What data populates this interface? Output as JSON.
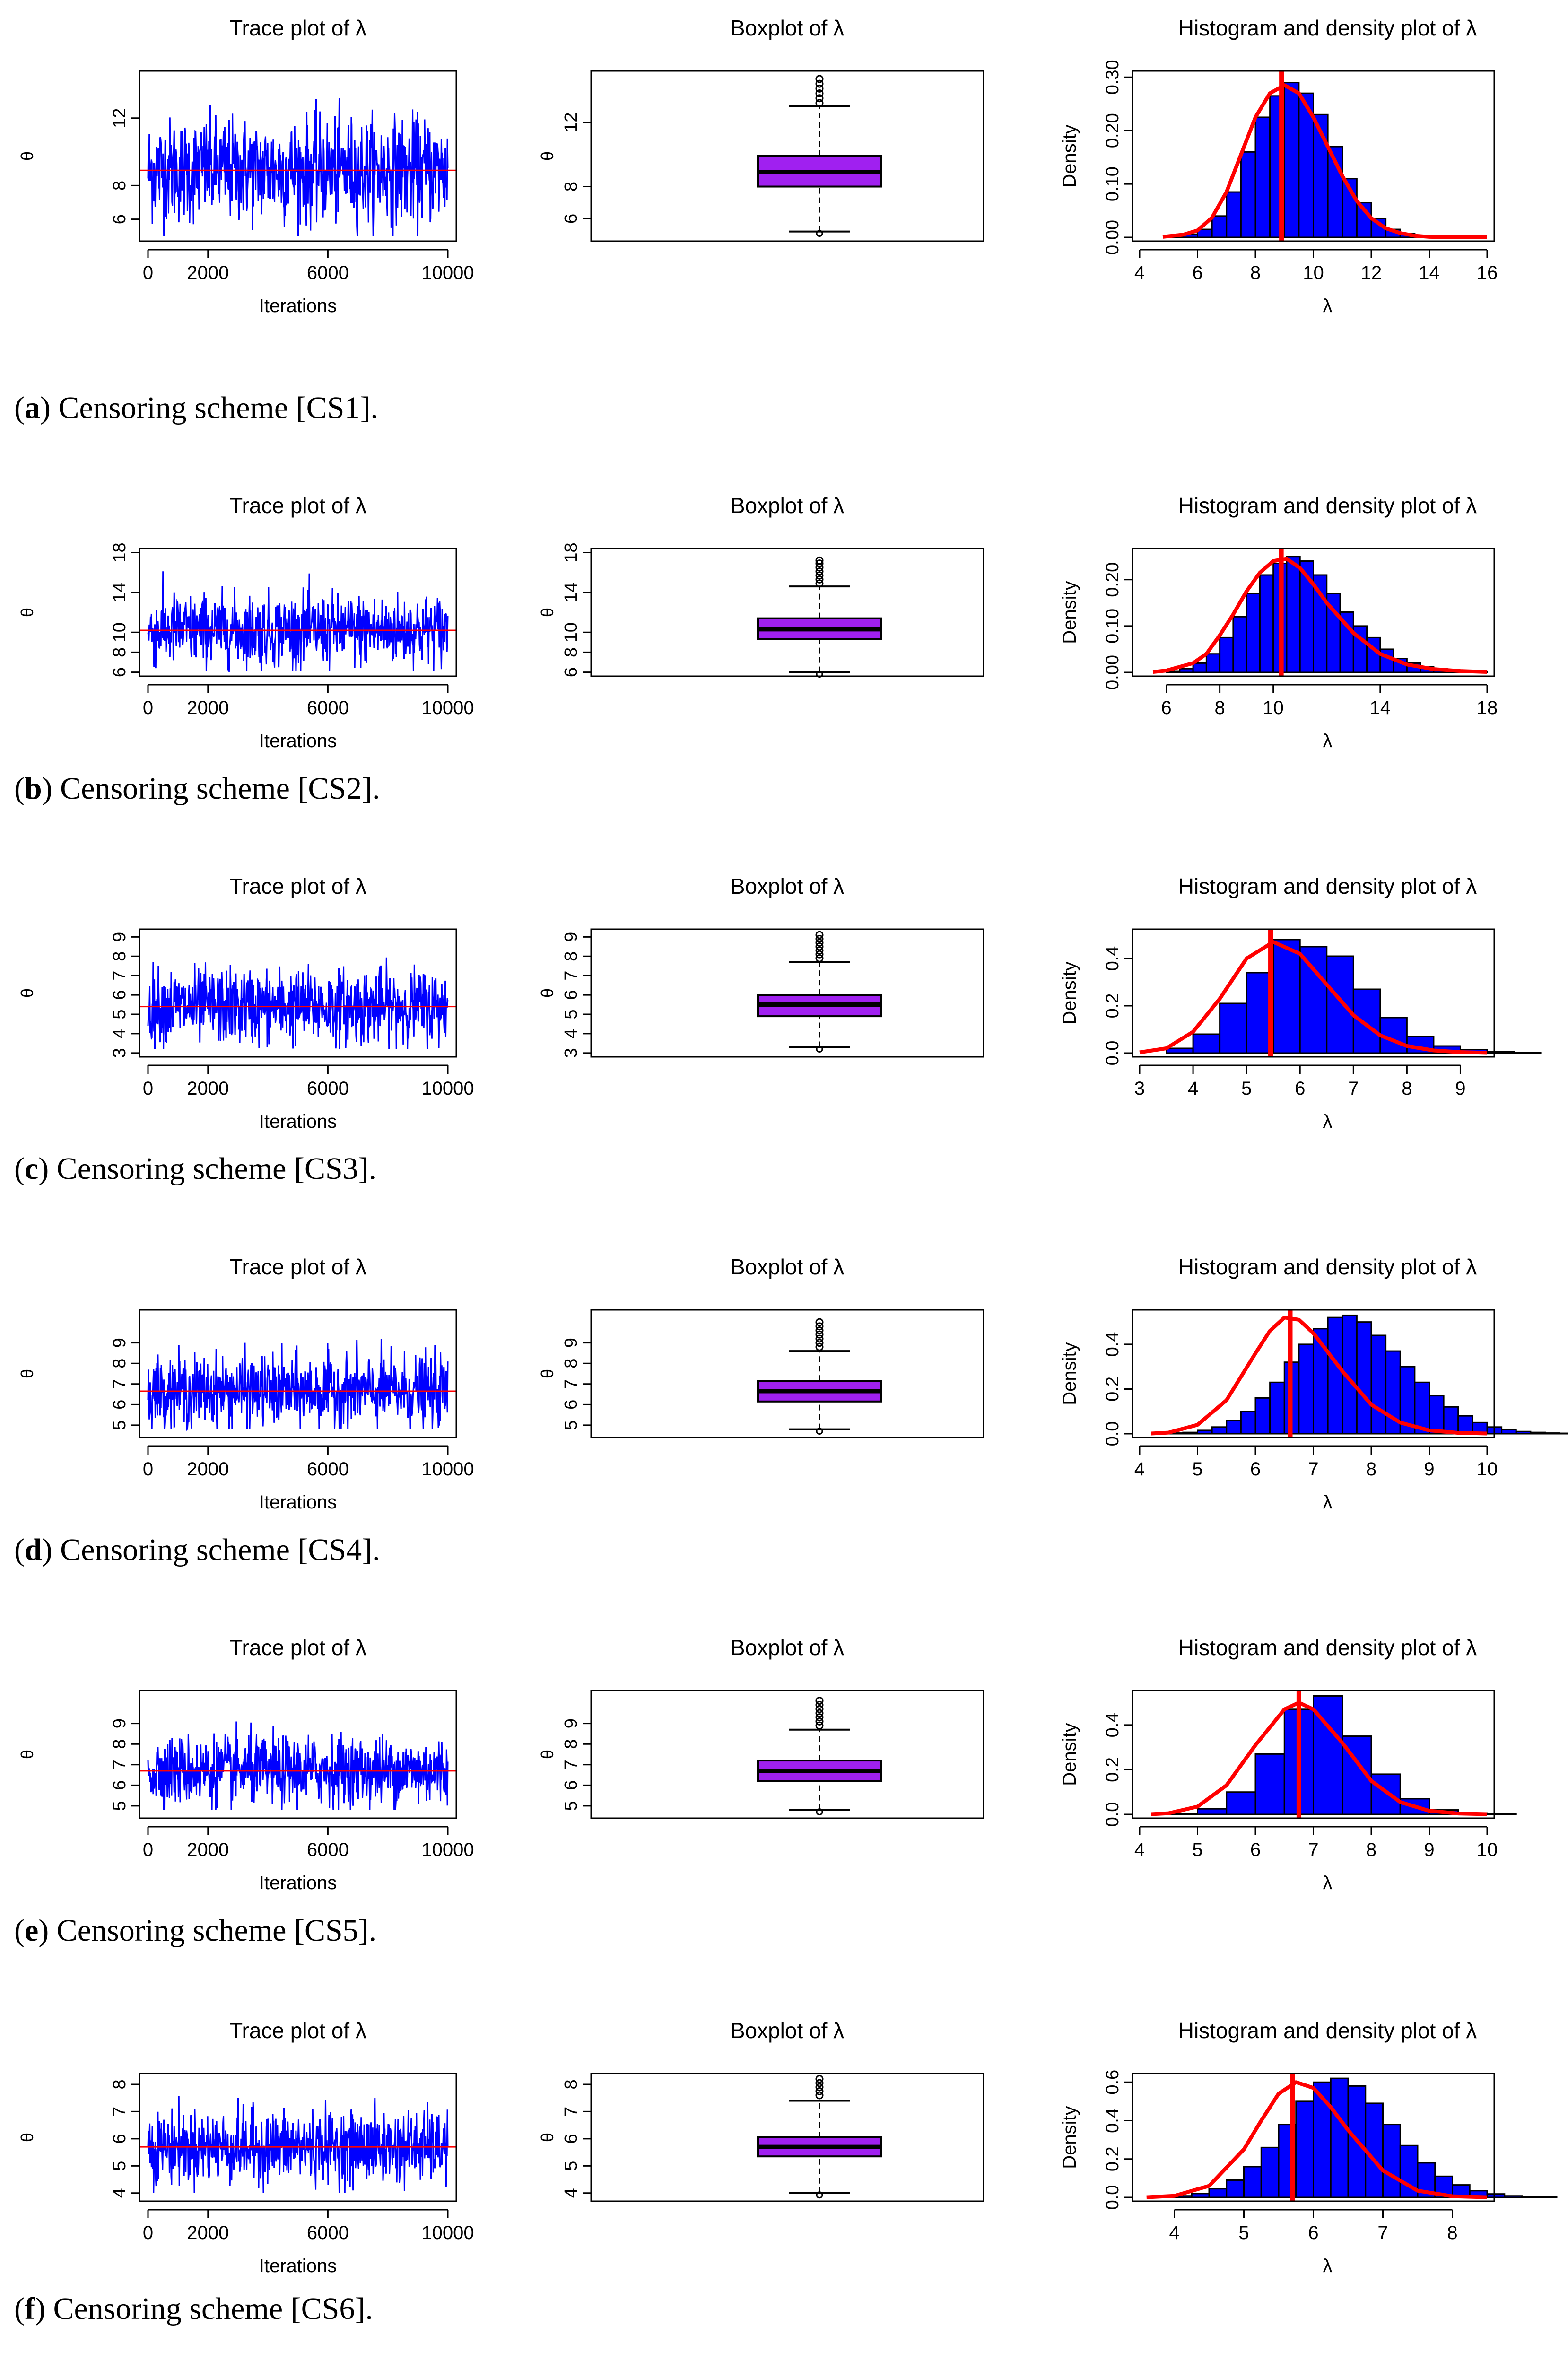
{
  "figure": {
    "panel_titles": {
      "trace": "Trace plot of λ",
      "box": "Boxplot of λ",
      "hist": "Histogram and density plot of λ"
    },
    "trace_xlabel": "Iterations",
    "trace_ylabel": "θ",
    "box_ylabel": "θ",
    "hist_ylabel": "Density",
    "hist_xlabel": "λ",
    "colors": {
      "trace": "#0000ff",
      "mean_line": "#ff0000",
      "box_fill": "#a020f0",
      "hist_fill": "#0000ff",
      "density": "#ff0000"
    }
  },
  "rows": [
    {
      "caption_letter": "a",
      "caption_text": ") Censoring scheme [CS1].",
      "caption_open": "("
    },
    {
      "caption_letter": "b",
      "caption_text": ") Censoring scheme [CS2].",
      "caption_open": "("
    },
    {
      "caption_letter": "c",
      "caption_text": ") Censoring scheme [CS3].",
      "caption_open": "("
    },
    {
      "caption_letter": "d",
      "caption_text": ") Censoring scheme [CS4].",
      "caption_open": "("
    },
    {
      "caption_letter": "e",
      "caption_text": ") Censoring scheme [CS5].",
      "caption_open": "("
    },
    {
      "caption_letter": "f",
      "caption_text": ") Censoring scheme [CS6].",
      "caption_open": "("
    }
  ],
  "chart_data": [
    {
      "scheme": "CS1",
      "trace": {
        "type": "line",
        "title": "Trace plot of λ",
        "xlabel": "Iterations",
        "ylabel": "θ",
        "xlim": [
          0,
          10000
        ],
        "xticks": [
          0,
          2000,
          6000,
          10000
        ],
        "ylim": [
          4.7,
          14.8
        ],
        "yticks": [
          6,
          8,
          12
        ],
        "mean": 8.9,
        "range_observed": [
          5.0,
          14.6
        ]
      },
      "boxplot": {
        "type": "box",
        "title": "Boxplot of λ",
        "ylabel": "θ",
        "ylim": [
          4.6,
          15.2
        ],
        "yticks": [
          6,
          8,
          12
        ],
        "whisker_low": 5.2,
        "q1": 8.0,
        "median": 8.9,
        "q3": 9.9,
        "whisker_high": 13.0,
        "outliers_high": [
          13.2,
          13.5,
          13.8,
          14.1,
          14.4,
          14.7
        ]
      },
      "histogram": {
        "type": "histogram",
        "title": "Histogram and density plot of λ",
        "xlabel": "λ",
        "ylabel": "Density",
        "xlim": [
          4,
          16
        ],
        "xticks": [
          4,
          6,
          8,
          10,
          12,
          14,
          16
        ],
        "ylim": [
          0,
          0.31
        ],
        "yticks": [
          "0.00",
          "0.10",
          "0.20",
          "0.30"
        ],
        "bin_start": 5,
        "bin_width": 0.5,
        "densities": [
          0.002,
          0.006,
          0.015,
          0.04,
          0.085,
          0.16,
          0.225,
          0.265,
          0.29,
          0.27,
          0.23,
          0.17,
          0.11,
          0.065,
          0.035,
          0.015,
          0.007,
          0.003
        ],
        "density_curve_x": [
          4.8,
          5.5,
          6,
          6.5,
          7,
          7.5,
          8,
          8.5,
          9,
          9.5,
          10,
          10.5,
          11,
          11.5,
          12,
          12.5,
          13,
          13.5,
          14,
          14.5,
          15,
          16
        ],
        "density_curve_y": [
          0.001,
          0.005,
          0.013,
          0.037,
          0.085,
          0.155,
          0.225,
          0.27,
          0.285,
          0.27,
          0.225,
          0.17,
          0.115,
          0.068,
          0.036,
          0.017,
          0.008,
          0.003,
          0.001,
          0.0005,
          0.0002,
          0
        ],
        "mean": 8.9
      }
    },
    {
      "scheme": "CS2",
      "trace": {
        "type": "line",
        "title": "Trace plot of λ",
        "xlabel": "Iterations",
        "ylabel": "θ",
        "xlim": [
          0,
          10000
        ],
        "xticks": [
          0,
          2000,
          6000,
          10000
        ],
        "ylim": [
          5.6,
          18.4
        ],
        "yticks": [
          6,
          8,
          10,
          14,
          18
        ],
        "mean": 10.2,
        "range_observed": [
          6.1,
          17.3
        ]
      },
      "boxplot": {
        "type": "box",
        "title": "Boxplot of λ",
        "ylabel": "θ",
        "ylim": [
          5.6,
          18.4
        ],
        "yticks": [
          6,
          8,
          10,
          14,
          18
        ],
        "whisker_low": 6.0,
        "q1": 9.3,
        "median": 10.3,
        "q3": 11.4,
        "whisker_high": 14.6,
        "outliers_high": [
          14.9,
          15.3,
          15.7,
          16.1,
          16.5,
          16.9,
          17.2
        ]
      },
      "histogram": {
        "type": "histogram",
        "title": "Histogram and density plot of λ",
        "xlabel": "λ",
        "ylabel": "Density",
        "xlim": [
          5,
          18
        ],
        "xticks": [
          6,
          8,
          10,
          14,
          18
        ],
        "ylim": [
          0,
          0.265
        ],
        "yticks": [
          "0.00",
          "0.10",
          "0.20"
        ],
        "bin_start": 6,
        "bin_width": 0.5,
        "densities": [
          0.003,
          0.008,
          0.02,
          0.04,
          0.075,
          0.12,
          0.17,
          0.21,
          0.235,
          0.25,
          0.24,
          0.21,
          0.17,
          0.13,
          0.1,
          0.075,
          0.05,
          0.03,
          0.02,
          0.012,
          0.008,
          0.005,
          0.003,
          0.002
        ],
        "density_curve_x": [
          5.5,
          6,
          7,
          7.5,
          8,
          8.5,
          9,
          9.5,
          10,
          10.5,
          11,
          11.5,
          12,
          13,
          14,
          15,
          16,
          17,
          18
        ],
        "density_curve_y": [
          0.001,
          0.004,
          0.02,
          0.04,
          0.08,
          0.125,
          0.175,
          0.215,
          0.24,
          0.245,
          0.225,
          0.19,
          0.15,
          0.085,
          0.04,
          0.017,
          0.007,
          0.003,
          0.001
        ],
        "mean": 10.3
      }
    },
    {
      "scheme": "CS3",
      "trace": {
        "type": "line",
        "title": "Trace plot of λ",
        "xlabel": "Iterations",
        "ylabel": "θ",
        "xlim": [
          0,
          10000
        ],
        "xticks": [
          0,
          2000,
          6000,
          10000
        ],
        "ylim": [
          2.8,
          9.4
        ],
        "yticks": [
          3,
          4,
          5,
          6,
          7,
          8,
          9
        ],
        "mean": 5.4,
        "range_observed": [
          3.2,
          9.2
        ]
      },
      "boxplot": {
        "type": "box",
        "title": "Boxplot of λ",
        "ylabel": "θ",
        "ylim": [
          2.8,
          9.4
        ],
        "yticks": [
          3,
          4,
          5,
          6,
          7,
          8,
          9
        ],
        "whisker_low": 3.3,
        "q1": 4.9,
        "median": 5.5,
        "q3": 6.0,
        "whisker_high": 7.7,
        "outliers_high": [
          7.9,
          8.1,
          8.3,
          8.5,
          8.7,
          8.9,
          9.1
        ]
      },
      "histogram": {
        "type": "histogram",
        "title": "Histogram and density plot of λ",
        "xlabel": "λ",
        "ylabel": "Density",
        "xlim": [
          3,
          9.5
        ],
        "xticks": [
          3,
          4,
          5,
          6,
          7,
          8,
          9
        ],
        "ylim": [
          0,
          0.52
        ],
        "yticks": [
          "0.0",
          "0.2",
          "0.4"
        ],
        "bin_start": 3.5,
        "bin_width": 0.5,
        "densities": [
          0.02,
          0.08,
          0.21,
          0.34,
          0.48,
          0.45,
          0.41,
          0.27,
          0.15,
          0.07,
          0.03,
          0.015,
          0.006,
          0.003
        ],
        "density_curve_x": [
          3,
          3.5,
          4,
          4.5,
          5,
          5.5,
          6,
          6.5,
          7,
          7.5,
          8,
          8.5,
          9,
          9.5
        ],
        "density_curve_y": [
          0.003,
          0.02,
          0.09,
          0.23,
          0.4,
          0.47,
          0.42,
          0.29,
          0.16,
          0.075,
          0.03,
          0.011,
          0.004,
          0.001
        ],
        "mean": 5.45
      }
    },
    {
      "scheme": "CS4",
      "trace": {
        "type": "line",
        "title": "Trace plot of λ",
        "xlabel": "Iterations",
        "ylabel": "θ",
        "xlim": [
          0,
          10000
        ],
        "xticks": [
          0,
          2000,
          6000,
          10000
        ],
        "ylim": [
          4.4,
          10.6
        ],
        "yticks": [
          5,
          6,
          7,
          8,
          9
        ],
        "mean": 6.65,
        "range_observed": [
          4.8,
          10.1
        ]
      },
      "boxplot": {
        "type": "box",
        "title": "Boxplot of λ",
        "ylabel": "θ",
        "ylim": [
          4.4,
          10.6
        ],
        "yticks": [
          5,
          6,
          7,
          8,
          9
        ],
        "whisker_low": 4.8,
        "q1": 6.15,
        "median": 6.65,
        "q3": 7.15,
        "whisker_high": 8.6,
        "outliers_high": [
          8.8,
          9.0,
          9.2,
          9.4,
          9.6,
          9.8,
          10.0
        ]
      },
      "histogram": {
        "type": "histogram",
        "title": "Histogram and density plot of λ",
        "xlabel": "λ",
        "ylabel": "Density",
        "xlim": [
          4,
          10
        ],
        "xticks": [
          4,
          5,
          6,
          7,
          8,
          9,
          10
        ],
        "ylim": [
          0,
          0.55
        ],
        "yticks": [
          "0.0",
          "0.2",
          "0.4"
        ],
        "bin_start": 4.5,
        "bin_width": 0.25,
        "densities": [
          0.003,
          0.006,
          0.015,
          0.03,
          0.06,
          0.1,
          0.16,
          0.23,
          0.32,
          0.4,
          0.47,
          0.52,
          0.53,
          0.5,
          0.44,
          0.37,
          0.3,
          0.23,
          0.17,
          0.12,
          0.08,
          0.05,
          0.03,
          0.018,
          0.01,
          0.006,
          0.003,
          0.002
        ],
        "density_curve_x": [
          4.2,
          4.5,
          5,
          5.5,
          6,
          6.25,
          6.5,
          6.75,
          7,
          7.5,
          8,
          8.5,
          9,
          9.5,
          10
        ],
        "density_curve_y": [
          0.001,
          0.005,
          0.04,
          0.15,
          0.36,
          0.46,
          0.52,
          0.51,
          0.45,
          0.28,
          0.13,
          0.05,
          0.015,
          0.004,
          0.001
        ],
        "mean": 6.6
      }
    },
    {
      "scheme": "CS5",
      "trace": {
        "type": "line",
        "title": "Trace plot of λ",
        "xlabel": "Iterations",
        "ylabel": "θ",
        "xlim": [
          0,
          10000
        ],
        "xticks": [
          0,
          2000,
          6000,
          10000
        ],
        "ylim": [
          4.4,
          10.6
        ],
        "yticks": [
          5,
          6,
          7,
          8,
          9
        ],
        "mean": 6.7,
        "range_observed": [
          4.8,
          10.0
        ]
      },
      "boxplot": {
        "type": "box",
        "title": "Boxplot of λ",
        "ylabel": "θ",
        "ylim": [
          4.4,
          10.6
        ],
        "yticks": [
          5,
          6,
          7,
          8,
          9
        ],
        "whisker_low": 4.8,
        "q1": 6.2,
        "median": 6.7,
        "q3": 7.2,
        "whisker_high": 8.7,
        "outliers_high": [
          8.9,
          9.1,
          9.3,
          9.5,
          9.7,
          9.9,
          10.1
        ]
      },
      "histogram": {
        "type": "histogram",
        "title": "Histogram and density plot of λ",
        "xlabel": "λ",
        "ylabel": "Density",
        "xlim": [
          4,
          10
        ],
        "xticks": [
          4,
          5,
          6,
          7,
          8,
          9,
          10
        ],
        "ylim": [
          0,
          0.55
        ],
        "yticks": [
          "0.0",
          "0.2",
          "0.4"
        ],
        "bin_start": 4.5,
        "bin_width": 0.5,
        "densities": [
          0.005,
          0.025,
          0.1,
          0.27,
          0.47,
          0.53,
          0.35,
          0.18,
          0.07,
          0.02,
          0.006,
          0.002
        ],
        "density_curve_x": [
          4.2,
          4.5,
          5,
          5.5,
          6,
          6.5,
          6.75,
          7,
          7.5,
          8,
          8.5,
          9,
          9.5,
          10
        ],
        "density_curve_y": [
          0.001,
          0.005,
          0.035,
          0.13,
          0.31,
          0.47,
          0.5,
          0.47,
          0.32,
          0.15,
          0.055,
          0.016,
          0.004,
          0.001
        ],
        "mean": 6.75
      }
    },
    {
      "scheme": "CS6",
      "trace": {
        "type": "line",
        "title": "Trace plot of λ",
        "xlabel": "Iterations",
        "ylabel": "θ",
        "xlim": [
          0,
          10000
        ],
        "xticks": [
          0,
          2000,
          6000,
          10000
        ],
        "ylim": [
          3.7,
          8.4
        ],
        "yticks": [
          4,
          5,
          6,
          7,
          8
        ],
        "mean": 5.7,
        "range_observed": [
          4.0,
          8.1
        ]
      },
      "boxplot": {
        "type": "box",
        "title": "Boxplot of λ",
        "ylabel": "θ",
        "ylim": [
          3.7,
          8.4
        ],
        "yticks": [
          4,
          5,
          6,
          7,
          8
        ],
        "whisker_low": 4.0,
        "q1": 5.35,
        "median": 5.7,
        "q3": 6.05,
        "whisker_high": 7.4,
        "outliers_high": [
          7.6,
          7.75,
          7.9,
          8.05,
          8.2
        ]
      },
      "histogram": {
        "type": "histogram",
        "title": "Histogram and density plot of λ",
        "xlabel": "λ",
        "ylabel": "Density",
        "xlim": [
          3.5,
          8.5
        ],
        "xticks": [
          4,
          5,
          6,
          7,
          8
        ],
        "ylim": [
          0,
          0.64
        ],
        "yticks": [
          "0.0",
          "0.2",
          "0.4",
          "0.6"
        ],
        "bin_start": 3.75,
        "bin_width": 0.25,
        "densities": [
          0.003,
          0.008,
          0.02,
          0.045,
          0.09,
          0.16,
          0.26,
          0.38,
          0.5,
          0.6,
          0.62,
          0.58,
          0.49,
          0.38,
          0.27,
          0.18,
          0.11,
          0.065,
          0.035,
          0.018,
          0.008,
          0.004,
          0.002
        ],
        "density_curve_x": [
          3.6,
          4,
          4.5,
          5,
          5.25,
          5.5,
          5.75,
          6,
          6.25,
          6.5,
          7,
          7.5,
          8,
          8.5
        ],
        "density_curve_y": [
          0.001,
          0.008,
          0.06,
          0.25,
          0.4,
          0.54,
          0.6,
          0.57,
          0.47,
          0.35,
          0.14,
          0.035,
          0.006,
          0.001
        ],
        "mean": 5.7
      }
    }
  ]
}
